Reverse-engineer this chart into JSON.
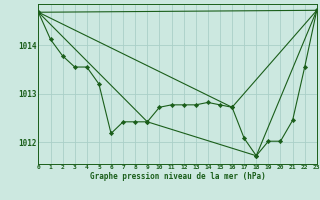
{
  "background_color": "#cce8e0",
  "plot_bg_color": "#cce8e0",
  "line_color": "#1a5e1a",
  "marker_color": "#1a5e1a",
  "grid_color": "#aacfc8",
  "xlabel": "Graphe pression niveau de la mer (hPa)",
  "xlim": [
    0,
    23
  ],
  "ylim": [
    1011.55,
    1014.85
  ],
  "yticks": [
    1012,
    1013,
    1014
  ],
  "xticks": [
    0,
    1,
    2,
    3,
    4,
    5,
    6,
    7,
    8,
    9,
    10,
    11,
    12,
    13,
    14,
    15,
    16,
    17,
    18,
    19,
    20,
    21,
    22,
    23
  ],
  "series": [
    [
      0,
      1014.68
    ],
    [
      1,
      1014.12
    ],
    [
      2,
      1013.78
    ],
    [
      3,
      1013.55
    ],
    [
      4,
      1013.55
    ],
    [
      5,
      1013.2
    ],
    [
      6,
      1012.18
    ],
    [
      7,
      1012.42
    ],
    [
      8,
      1012.42
    ],
    [
      9,
      1012.42
    ],
    [
      10,
      1012.72
    ],
    [
      11,
      1012.77
    ],
    [
      12,
      1012.77
    ],
    [
      13,
      1012.77
    ],
    [
      14,
      1012.82
    ],
    [
      15,
      1012.77
    ],
    [
      16,
      1012.72
    ],
    [
      17,
      1012.08
    ],
    [
      18,
      1011.72
    ],
    [
      19,
      1012.02
    ],
    [
      20,
      1012.02
    ],
    [
      21,
      1012.45
    ],
    [
      22,
      1013.55
    ],
    [
      23,
      1014.72
    ]
  ],
  "series2": [
    [
      0,
      1014.68
    ],
    [
      23,
      1014.72
    ]
  ],
  "series3": [
    [
      0,
      1014.68
    ],
    [
      16,
      1012.72
    ],
    [
      23,
      1014.72
    ]
  ],
  "series4": [
    [
      0,
      1014.68
    ],
    [
      9,
      1012.42
    ],
    [
      18,
      1011.72
    ],
    [
      23,
      1014.72
    ]
  ]
}
